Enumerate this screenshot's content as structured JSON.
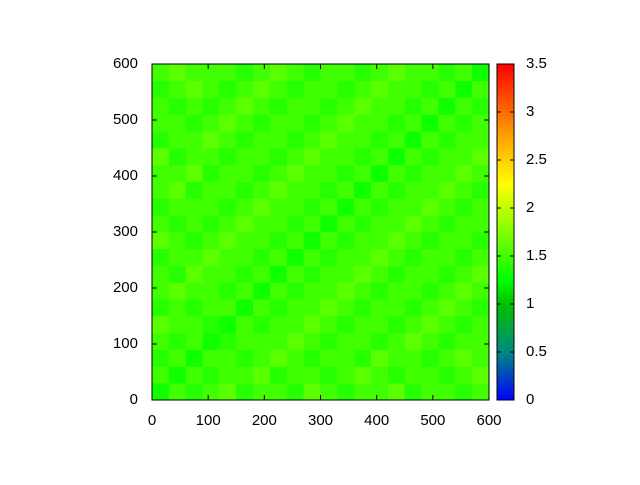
{
  "chart_data": {
    "type": "heatmap",
    "xlim": [
      0,
      600
    ],
    "ylim": [
      0,
      600
    ],
    "xticks": [
      0,
      100,
      200,
      300,
      400,
      500,
      600
    ],
    "yticks": [
      0,
      100,
      200,
      300,
      400,
      500,
      600
    ],
    "clim": [
      0,
      3.5
    ],
    "cticks": [
      0,
      0.5,
      1,
      1.5,
      2,
      2.5,
      3,
      3.5
    ],
    "colormap": [
      [
        0,
        "#0000ff"
      ],
      [
        0.5,
        "#008a80"
      ],
      [
        1,
        "#00c000"
      ],
      [
        1.25,
        "#00ff00"
      ],
      [
        1.75,
        "#80ff00"
      ],
      [
        2.25,
        "#ffff00"
      ],
      [
        2.75,
        "#ffa000"
      ],
      [
        3.5,
        "#ff0000"
      ]
    ],
    "z": [
      [
        1.3,
        1.5,
        1.4,
        1.5,
        1.6,
        1.4,
        1.5,
        1.5,
        1.4,
        1.6,
        1.5,
        1.4,
        1.5,
        1.5,
        1.6,
        1.4,
        1.5,
        1.5,
        1.4,
        1.5
      ],
      [
        1.5,
        1.3,
        1.5,
        1.4,
        1.5,
        1.5,
        1.6,
        1.4,
        1.5,
        1.5,
        1.4,
        1.5,
        1.6,
        1.5,
        1.4,
        1.5,
        1.5,
        1.4,
        1.5,
        1.6
      ],
      [
        1.4,
        1.5,
        1.3,
        1.5,
        1.5,
        1.4,
        1.5,
        1.6,
        1.5,
        1.4,
        1.5,
        1.5,
        1.4,
        1.6,
        1.5,
        1.5,
        1.4,
        1.5,
        1.6,
        1.5
      ],
      [
        1.5,
        1.4,
        1.5,
        1.3,
        1.4,
        1.5,
        1.5,
        1.5,
        1.6,
        1.5,
        1.4,
        1.5,
        1.5,
        1.4,
        1.5,
        1.6,
        1.5,
        1.4,
        1.5,
        1.5
      ],
      [
        1.6,
        1.5,
        1.5,
        1.4,
        1.3,
        1.5,
        1.4,
        1.5,
        1.5,
        1.6,
        1.5,
        1.4,
        1.5,
        1.5,
        1.4,
        1.5,
        1.6,
        1.5,
        1.4,
        1.5
      ],
      [
        1.4,
        1.5,
        1.4,
        1.5,
        1.5,
        1.3,
        1.5,
        1.4,
        1.5,
        1.5,
        1.6,
        1.5,
        1.4,
        1.5,
        1.5,
        1.4,
        1.5,
        1.6,
        1.5,
        1.4
      ],
      [
        1.5,
        1.6,
        1.5,
        1.5,
        1.4,
        1.5,
        1.3,
        1.5,
        1.4,
        1.5,
        1.5,
        1.6,
        1.5,
        1.4,
        1.5,
        1.5,
        1.4,
        1.5,
        1.6,
        1.5
      ],
      [
        1.5,
        1.4,
        1.6,
        1.5,
        1.5,
        1.4,
        1.5,
        1.3,
        1.5,
        1.4,
        1.5,
        1.5,
        1.6,
        1.5,
        1.4,
        1.5,
        1.5,
        1.4,
        1.5,
        1.6
      ],
      [
        1.4,
        1.5,
        1.5,
        1.6,
        1.5,
        1.5,
        1.4,
        1.5,
        1.3,
        1.5,
        1.4,
        1.5,
        1.5,
        1.6,
        1.5,
        1.4,
        1.5,
        1.5,
        1.4,
        1.5
      ],
      [
        1.6,
        1.5,
        1.4,
        1.5,
        1.6,
        1.5,
        1.5,
        1.4,
        1.5,
        1.3,
        1.5,
        1.4,
        1.5,
        1.5,
        1.6,
        1.5,
        1.4,
        1.5,
        1.5,
        1.4
      ],
      [
        1.5,
        1.4,
        1.5,
        1.4,
        1.5,
        1.6,
        1.5,
        1.5,
        1.4,
        1.5,
        1.3,
        1.5,
        1.4,
        1.5,
        1.5,
        1.6,
        1.5,
        1.4,
        1.5,
        1.5
      ],
      [
        1.4,
        1.5,
        1.5,
        1.5,
        1.4,
        1.5,
        1.6,
        1.5,
        1.5,
        1.4,
        1.5,
        1.3,
        1.5,
        1.4,
        1.5,
        1.5,
        1.6,
        1.5,
        1.4,
        1.5
      ],
      [
        1.5,
        1.6,
        1.4,
        1.5,
        1.5,
        1.4,
        1.5,
        1.6,
        1.5,
        1.5,
        1.4,
        1.5,
        1.3,
        1.5,
        1.4,
        1.5,
        1.5,
        1.6,
        1.5,
        1.4
      ],
      [
        1.5,
        1.5,
        1.6,
        1.4,
        1.5,
        1.5,
        1.4,
        1.5,
        1.6,
        1.5,
        1.5,
        1.4,
        1.5,
        1.3,
        1.5,
        1.4,
        1.5,
        1.5,
        1.6,
        1.5
      ],
      [
        1.6,
        1.4,
        1.5,
        1.5,
        1.4,
        1.5,
        1.5,
        1.4,
        1.5,
        1.6,
        1.5,
        1.5,
        1.4,
        1.5,
        1.3,
        1.5,
        1.4,
        1.5,
        1.5,
        1.6
      ],
      [
        1.4,
        1.5,
        1.5,
        1.6,
        1.5,
        1.4,
        1.5,
        1.5,
        1.4,
        1.5,
        1.6,
        1.5,
        1.5,
        1.4,
        1.5,
        1.3,
        1.5,
        1.4,
        1.5,
        1.5
      ],
      [
        1.5,
        1.5,
        1.4,
        1.5,
        1.6,
        1.5,
        1.4,
        1.5,
        1.5,
        1.4,
        1.5,
        1.6,
        1.5,
        1.5,
        1.4,
        1.5,
        1.3,
        1.5,
        1.4,
        1.5
      ],
      [
        1.5,
        1.4,
        1.5,
        1.4,
        1.5,
        1.6,
        1.5,
        1.4,
        1.5,
        1.5,
        1.4,
        1.5,
        1.6,
        1.5,
        1.5,
        1.4,
        1.5,
        1.3,
        1.5,
        1.4
      ],
      [
        1.4,
        1.5,
        1.6,
        1.5,
        1.4,
        1.5,
        1.6,
        1.5,
        1.4,
        1.5,
        1.5,
        1.4,
        1.5,
        1.6,
        1.5,
        1.5,
        1.4,
        1.5,
        1.3,
        1.5
      ],
      [
        1.5,
        1.6,
        1.5,
        1.5,
        1.5,
        1.4,
        1.5,
        1.6,
        1.5,
        1.4,
        1.5,
        1.5,
        1.4,
        1.5,
        1.6,
        1.5,
        1.5,
        1.4,
        1.5,
        1.3
      ]
    ]
  }
}
